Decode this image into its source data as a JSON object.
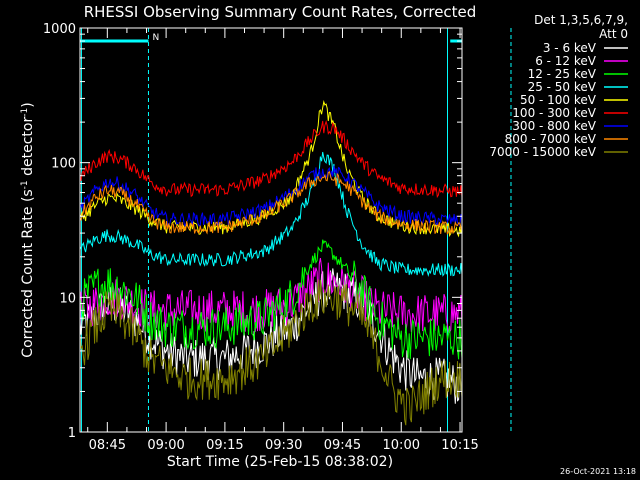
{
  "chart_data": {
    "type": "line",
    "title": "RHESSI Observing Summary Count Rates, Corrected",
    "xlabel": "Start Time (25-Feb-15 08:38:02)",
    "ylabel_main": "Corrected Count Rate (s",
    "ylabel_sup1": "-1",
    "ylabel_mid": " detector",
    "ylabel_sup2": "-1",
    "ylabel_end": ")",
    "yscale": "log",
    "ylim": [
      1,
      1000
    ],
    "xlim_minutes": [
      38.03,
      135.5
    ],
    "xticks": [
      {
        "min": 45,
        "label": "08:45"
      },
      {
        "min": 60,
        "label": "09:00"
      },
      {
        "min": 75,
        "label": "09:15"
      },
      {
        "min": 90,
        "label": "09:30"
      },
      {
        "min": 105,
        "label": "09:45"
      },
      {
        "min": 120,
        "label": "10:00"
      },
      {
        "min": 135,
        "label": "10:15"
      }
    ],
    "yticks": [
      {
        "v": 1,
        "label": "1"
      },
      {
        "v": 10,
        "label": "10"
      },
      {
        "v": 100,
        "label": "100"
      },
      {
        "v": 1000,
        "label": "1000"
      }
    ],
    "legend_header": [
      "Det 1,3,5,6,7,9,",
      "Att 0"
    ],
    "legend_position": "right",
    "timestamp": "26-Oct-2021 13:18",
    "flag_label": "N",
    "flag_bars": [
      [
        38.03,
        55.5
      ],
      [
        132.5,
        150.0
      ]
    ],
    "solid_verticals": [
      38.4,
      131.8
    ],
    "dashed_verticals": [
      55.5,
      148.0
    ],
    "series": [
      {
        "name": "3 - 6 keV",
        "color": "#ffffff",
        "points": [
          [
            38.03,
            6
          ],
          [
            42,
            7.5
          ],
          [
            45,
            9
          ],
          [
            48,
            8.5
          ],
          [
            52,
            7
          ],
          [
            56,
            5
          ],
          [
            60,
            4
          ],
          [
            65,
            3.5
          ],
          [
            75,
            3.5
          ],
          [
            85,
            4.5
          ],
          [
            92,
            6
          ],
          [
            97,
            9
          ],
          [
            100,
            11
          ],
          [
            103,
            11.5
          ],
          [
            106,
            11
          ],
          [
            110,
            9
          ],
          [
            114,
            6
          ],
          [
            117,
            4
          ],
          [
            120,
            3
          ],
          [
            124,
            2.5
          ],
          [
            130,
            2.5
          ],
          [
            135.5,
            2.2
          ]
        ]
      },
      {
        "name": "6 - 12 keV",
        "color": "#ff00ff",
        "points": [
          [
            38.03,
            8
          ],
          [
            42,
            9
          ],
          [
            45,
            10
          ],
          [
            48,
            10
          ],
          [
            52,
            9
          ],
          [
            56,
            8
          ],
          [
            60,
            8
          ],
          [
            75,
            8
          ],
          [
            85,
            8
          ],
          [
            92,
            9
          ],
          [
            97,
            12
          ],
          [
            100,
            14
          ],
          [
            103,
            13
          ],
          [
            106,
            12
          ],
          [
            110,
            10
          ],
          [
            114,
            8
          ],
          [
            120,
            7.5
          ],
          [
            130,
            7.5
          ],
          [
            135.5,
            7.5
          ]
        ]
      },
      {
        "name": "12 - 25 keV",
        "color": "#00ff00",
        "points": [
          [
            38.03,
            9
          ],
          [
            42,
            12
          ],
          [
            45,
            13
          ],
          [
            48,
            12
          ],
          [
            52,
            10
          ],
          [
            56,
            7
          ],
          [
            60,
            6
          ],
          [
            75,
            6
          ],
          [
            85,
            7
          ],
          [
            92,
            10
          ],
          [
            97,
            18
          ],
          [
            100,
            24
          ],
          [
            102,
            22
          ],
          [
            106,
            16
          ],
          [
            110,
            11
          ],
          [
            114,
            7
          ],
          [
            120,
            5
          ],
          [
            130,
            5
          ],
          [
            135.5,
            5
          ]
        ]
      },
      {
        "name": "25 - 50 keV",
        "color": "#00ffff",
        "points": [
          [
            38.03,
            22
          ],
          [
            42,
            27
          ],
          [
            45,
            29
          ],
          [
            48,
            28
          ],
          [
            52,
            25
          ],
          [
            56,
            21
          ],
          [
            60,
            19
          ],
          [
            75,
            19
          ],
          [
            85,
            22
          ],
          [
            92,
            32
          ],
          [
            97,
            60
          ],
          [
            100,
            120
          ],
          [
            103,
            90
          ],
          [
            106,
            45
          ],
          [
            110,
            25
          ],
          [
            114,
            18
          ],
          [
            120,
            16
          ],
          [
            130,
            16
          ],
          [
            135.5,
            16
          ]
        ]
      },
      {
        "name": "50 - 100 keV",
        "color": "#ffff00",
        "points": [
          [
            38.03,
            38
          ],
          [
            42,
            48
          ],
          [
            45,
            55
          ],
          [
            48,
            53
          ],
          [
            52,
            46
          ],
          [
            56,
            38
          ],
          [
            60,
            33
          ],
          [
            75,
            33
          ],
          [
            85,
            40
          ],
          [
            92,
            55
          ],
          [
            97,
            120
          ],
          [
            100,
            280
          ],
          [
            103,
            180
          ],
          [
            106,
            90
          ],
          [
            110,
            55
          ],
          [
            114,
            40
          ],
          [
            120,
            34
          ],
          [
            130,
            32
          ],
          [
            135.5,
            31
          ]
        ]
      },
      {
        "name": "100 - 300 keV",
        "color": "#ff0000",
        "points": [
          [
            38.03,
            78
          ],
          [
            42,
            100
          ],
          [
            45,
            112
          ],
          [
            48,
            108
          ],
          [
            52,
            92
          ],
          [
            56,
            72
          ],
          [
            60,
            63
          ],
          [
            75,
            63
          ],
          [
            85,
            75
          ],
          [
            92,
            100
          ],
          [
            97,
            150
          ],
          [
            100,
            185
          ],
          [
            103,
            180
          ],
          [
            106,
            140
          ],
          [
            110,
            100
          ],
          [
            114,
            78
          ],
          [
            120,
            65
          ],
          [
            130,
            62
          ],
          [
            135.5,
            61
          ]
        ]
      },
      {
        "name": "300 - 800 keV",
        "color": "#0000ff",
        "points": [
          [
            38.03,
            45
          ],
          [
            42,
            62
          ],
          [
            45,
            72
          ],
          [
            48,
            70
          ],
          [
            52,
            58
          ],
          [
            56,
            44
          ],
          [
            60,
            38
          ],
          [
            75,
            38
          ],
          [
            85,
            45
          ],
          [
            92,
            60
          ],
          [
            97,
            80
          ],
          [
            100,
            86
          ],
          [
            103,
            85
          ],
          [
            106,
            78
          ],
          [
            110,
            62
          ],
          [
            114,
            48
          ],
          [
            120,
            40
          ],
          [
            130,
            38
          ],
          [
            135.5,
            37
          ]
        ]
      },
      {
        "name": "800 - 7000 keV",
        "color": "#ff8800",
        "points": [
          [
            38.03,
            40
          ],
          [
            42,
            55
          ],
          [
            45,
            62
          ],
          [
            48,
            60
          ],
          [
            52,
            50
          ],
          [
            56,
            38
          ],
          [
            60,
            33
          ],
          [
            75,
            33
          ],
          [
            85,
            40
          ],
          [
            92,
            55
          ],
          [
            97,
            72
          ],
          [
            100,
            78
          ],
          [
            103,
            76
          ],
          [
            106,
            68
          ],
          [
            110,
            52
          ],
          [
            114,
            40
          ],
          [
            120,
            35
          ],
          [
            130,
            33
          ],
          [
            135.5,
            32
          ]
        ]
      },
      {
        "name": "7000 - 15000 keV",
        "color": "#808000",
        "points": [
          [
            38.03,
            4
          ],
          [
            42,
            6
          ],
          [
            45,
            8
          ],
          [
            48,
            7.5
          ],
          [
            52,
            5.5
          ],
          [
            56,
            3.5
          ],
          [
            60,
            3
          ],
          [
            65,
            2.5
          ],
          [
            75,
            2.5
          ],
          [
            85,
            3.5
          ],
          [
            92,
            6
          ],
          [
            97,
            9
          ],
          [
            100,
            10
          ],
          [
            103,
            10
          ],
          [
            106,
            9
          ],
          [
            110,
            7
          ],
          [
            114,
            4
          ],
          [
            118,
            2
          ],
          [
            122,
            1.5
          ],
          [
            130,
            2.5
          ],
          [
            135.5,
            2.5
          ]
        ]
      }
    ]
  }
}
